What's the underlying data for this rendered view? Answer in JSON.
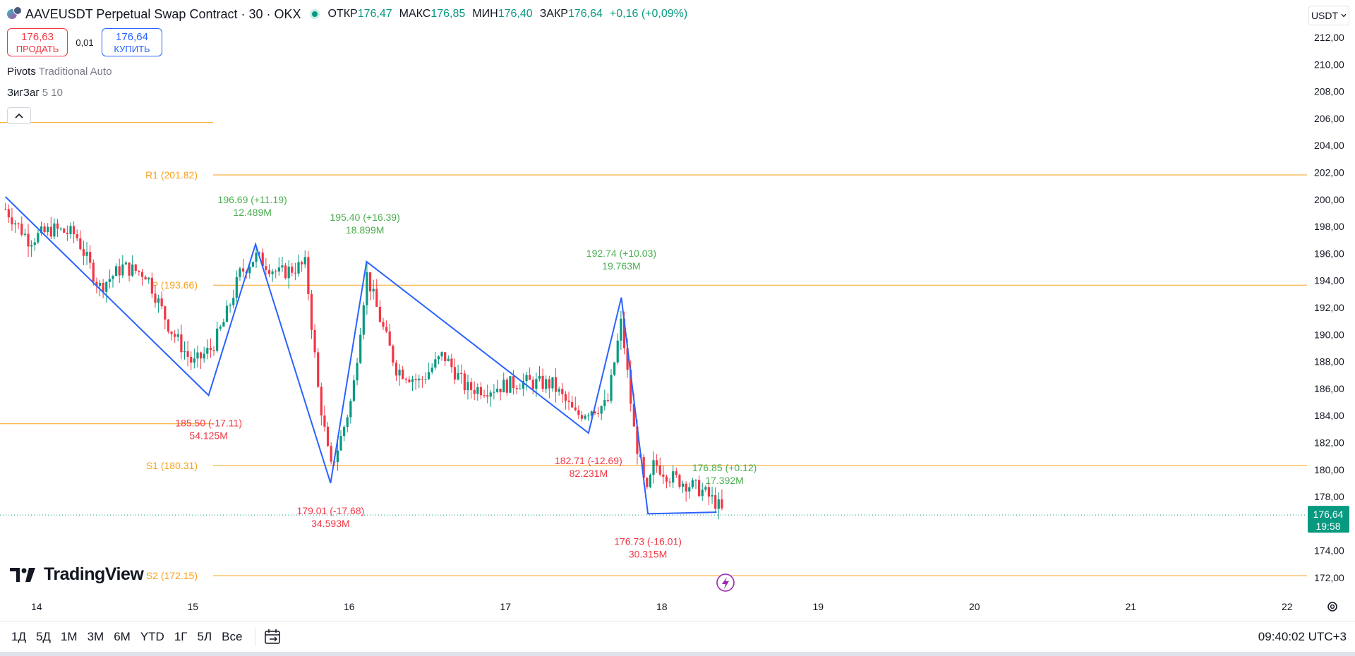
{
  "header": {
    "symbol_title": "AAVEUSDT Perpetual Swap Contract · 30 · OKX",
    "ohlc": [
      {
        "key": "ОТКР",
        "value": "176,47"
      },
      {
        "key": "МАКС",
        "value": "176,85"
      },
      {
        "key": "МИН",
        "value": "176,40"
      },
      {
        "key": "ЗАКР",
        "value": "176,64"
      }
    ],
    "change": "+0,16 (+0,09%)"
  },
  "trade": {
    "sell_price": "176,63",
    "sell_label": "ПРОДАТЬ",
    "spread": "0,01",
    "buy_price": "176,64",
    "buy_label": "КУПИТЬ"
  },
  "indicators": [
    {
      "name": "Pivots",
      "params": "Traditional Auto"
    },
    {
      "name": "ЗигЗаг",
      "params": "5 10"
    }
  ],
  "currency": "USDT",
  "logo_text": "TradingView",
  "ranges": [
    "1Д",
    "5Д",
    "1М",
    "3М",
    "6М",
    "YTD",
    "1Г",
    "5Л",
    "Все"
  ],
  "clock": "09:40:02 UTC+3",
  "colors": {
    "up": "#089981",
    "down": "#f23645",
    "zigzag": "#2962ff",
    "pivot": "#f7a21b",
    "label_up": "#4caf50",
    "label_down": "#f23645",
    "grid_text": "#131722"
  },
  "icons": [
    "symbol-logo-icon",
    "live-status-icon",
    "chevron-up-icon",
    "chevron-down-icon",
    "calendar-range-icon",
    "gear-icon",
    "lightning-icon",
    "tradingview-logo-icon"
  ],
  "chart_data": {
    "type": "candlestick",
    "title": "AAVEUSDT Perpetual Swap Contract · 30 · OKX",
    "ylim": [
      171,
      213
    ],
    "y_ticks": [
      "212,00",
      "210,00",
      "208,00",
      "206,00",
      "204,00",
      "202,00",
      "200,00",
      "198,00",
      "196,00",
      "194,00",
      "192,00",
      "190,00",
      "188,00",
      "186,00",
      "184,00",
      "182,00",
      "180,00",
      "178,00",
      "176,00",
      "174,00",
      "172,00"
    ],
    "y_tick_values": [
      212,
      210,
      208,
      206,
      204,
      202,
      200,
      198,
      196,
      194,
      192,
      190,
      188,
      186,
      184,
      182,
      180,
      178,
      176,
      174,
      172
    ],
    "x_ticks": [
      {
        "label": "14",
        "day": 14
      },
      {
        "label": "15",
        "day": 15
      },
      {
        "label": "16",
        "day": 16
      },
      {
        "label": "17",
        "day": 17
      },
      {
        "label": "18",
        "day": 18
      },
      {
        "label": "19",
        "day": 19
      },
      {
        "label": "20",
        "day": 20
      },
      {
        "label": "21",
        "day": 21
      },
      {
        "label": "22",
        "day": 22
      }
    ],
    "xlim_days": [
      13.8,
      22.1
    ],
    "last_price": {
      "value": 176.64,
      "label": "176,64",
      "countdown": "19:58"
    },
    "pivots": [
      {
        "name": "R1",
        "label": "R1 (201.82)",
        "value": 201.82
      },
      {
        "name": "P",
        "label": "P (193.66)",
        "value": 193.66
      },
      {
        "name": "S1",
        "label": "S1 (180.31)",
        "value": 180.31
      },
      {
        "name": "S2",
        "label": "S2 (172.15)",
        "value": 172.15
      }
    ],
    "prev_pivot_levels": [
      205.7,
      183.4
    ],
    "zigzag": [
      {
        "day": 13.8,
        "price": 200.2
      },
      {
        "day": 15.1,
        "price": 185.5
      },
      {
        "day": 15.4,
        "price": 196.69
      },
      {
        "day": 15.88,
        "price": 179.01
      },
      {
        "day": 16.11,
        "price": 195.4
      },
      {
        "day": 17.53,
        "price": 182.71
      },
      {
        "day": 17.74,
        "price": 192.74
      },
      {
        "day": 17.91,
        "price": 176.73
      },
      {
        "day": 18.35,
        "price": 176.85
      }
    ],
    "zigzag_labels": [
      {
        "day": 15.38,
        "anchor_price": 196.69,
        "dir": "up",
        "line1": "196.69 (+11.19)",
        "line2": "12.489M"
      },
      {
        "day": 16.1,
        "anchor_price": 195.4,
        "dir": "up",
        "line1": "195.40 (+16.39)",
        "line2": "18.899M"
      },
      {
        "day": 17.74,
        "anchor_price": 192.74,
        "dir": "up",
        "line1": "192.74 (+10.03)",
        "line2": "19.763M"
      },
      {
        "day": 18.4,
        "anchor_price": 176.85,
        "dir": "up",
        "line1": "176.85 (+0.12)",
        "line2": "17.392M"
      },
      {
        "day": 15.1,
        "anchor_price": 185.5,
        "dir": "down",
        "line1": "185.50 (-17.11)",
        "line2": "54.125M"
      },
      {
        "day": 15.88,
        "anchor_price": 179.01,
        "dir": "down",
        "line1": "179.01 (-17.68)",
        "line2": "34.593M"
      },
      {
        "day": 17.53,
        "anchor_price": 182.71,
        "dir": "down",
        "line1": "182.71 (-12.69)",
        "line2": "82.231M"
      },
      {
        "day": 17.91,
        "anchor_price": 176.73,
        "dir": "down",
        "line1": "176.73 (-16.01)",
        "line2": "30.315M"
      }
    ],
    "price_path": [
      [
        13.8,
        199.3
      ],
      [
        13.95,
        197.0
      ],
      [
        14.1,
        197.8
      ],
      [
        14.25,
        197.4
      ],
      [
        14.4,
        193.5
      ],
      [
        14.55,
        195.0
      ],
      [
        14.7,
        194.5
      ],
      [
        14.85,
        190.5
      ],
      [
        15.0,
        187.8
      ],
      [
        15.12,
        189.0
      ],
      [
        15.2,
        191.0
      ],
      [
        15.3,
        194.5
      ],
      [
        15.4,
        195.8
      ],
      [
        15.55,
        194.5
      ],
      [
        15.72,
        195.2
      ],
      [
        15.8,
        186.0
      ],
      [
        15.88,
        180.0
      ],
      [
        15.95,
        182.5
      ],
      [
        16.02,
        185.5
      ],
      [
        16.11,
        194.5
      ],
      [
        16.2,
        191.0
      ],
      [
        16.3,
        187.5
      ],
      [
        16.45,
        186.5
      ],
      [
        16.6,
        188.5
      ],
      [
        16.75,
        186.0
      ],
      [
        16.9,
        186.0
      ],
      [
        17.1,
        186.5
      ],
      [
        17.3,
        186.3
      ],
      [
        17.45,
        184.0
      ],
      [
        17.55,
        184.5
      ],
      [
        17.65,
        184.8
      ],
      [
        17.74,
        191.0
      ],
      [
        17.82,
        183.0
      ],
      [
        17.9,
        178.0
      ],
      [
        17.95,
        180.5
      ],
      [
        18.05,
        179.5
      ],
      [
        18.15,
        179.0
      ],
      [
        18.25,
        178.5
      ],
      [
        18.35,
        177.5
      ],
      [
        18.4,
        176.64
      ]
    ]
  }
}
